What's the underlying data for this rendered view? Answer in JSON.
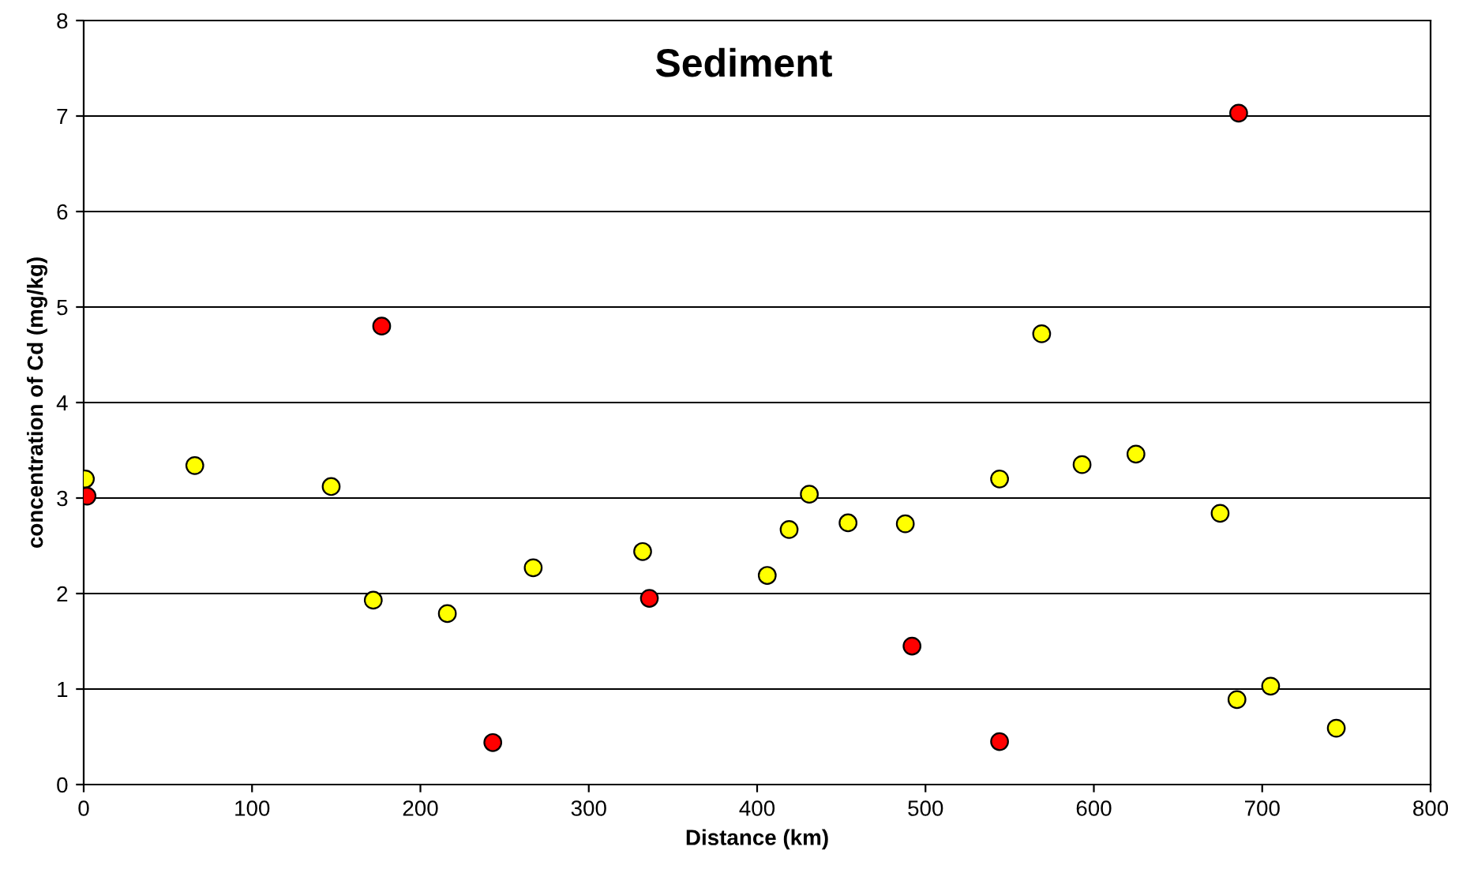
{
  "chart_data": {
    "type": "scatter",
    "title": "Sediment",
    "xlabel": "Distance (km)",
    "ylabel": "concentration of Cd (mg/kg)",
    "series": [
      {
        "color": "#ffff00",
        "x": [
          1,
          66,
          147,
          172,
          216,
          267,
          332,
          406,
          419,
          431,
          454,
          488,
          544,
          569,
          593,
          625,
          675,
          685,
          705,
          744
        ],
        "values": [
          3.2,
          3.34,
          3.12,
          1.93,
          1.79,
          2.27,
          2.44,
          2.19,
          2.67,
          3.04,
          2.74,
          2.73,
          3.2,
          4.72,
          3.35,
          3.46,
          2.84,
          0.89,
          1.03,
          0.59
        ]
      },
      {
        "color": "#ff0000",
        "x": [
          2,
          177,
          243,
          336,
          492,
          544,
          686
        ],
        "values": [
          3.02,
          4.8,
          0.44,
          1.95,
          1.45,
          0.45,
          7.03
        ]
      }
    ],
    "xlim": [
      0,
      800
    ],
    "xticks": [
      0,
      100,
      200,
      300,
      400,
      500,
      600,
      700,
      800
    ],
    "ylim": [
      0,
      8
    ],
    "yticks": [
      0,
      1,
      2,
      3,
      4,
      5,
      6,
      7,
      8
    ],
    "grid": "y",
    "marker": "circle",
    "legend": false
  }
}
